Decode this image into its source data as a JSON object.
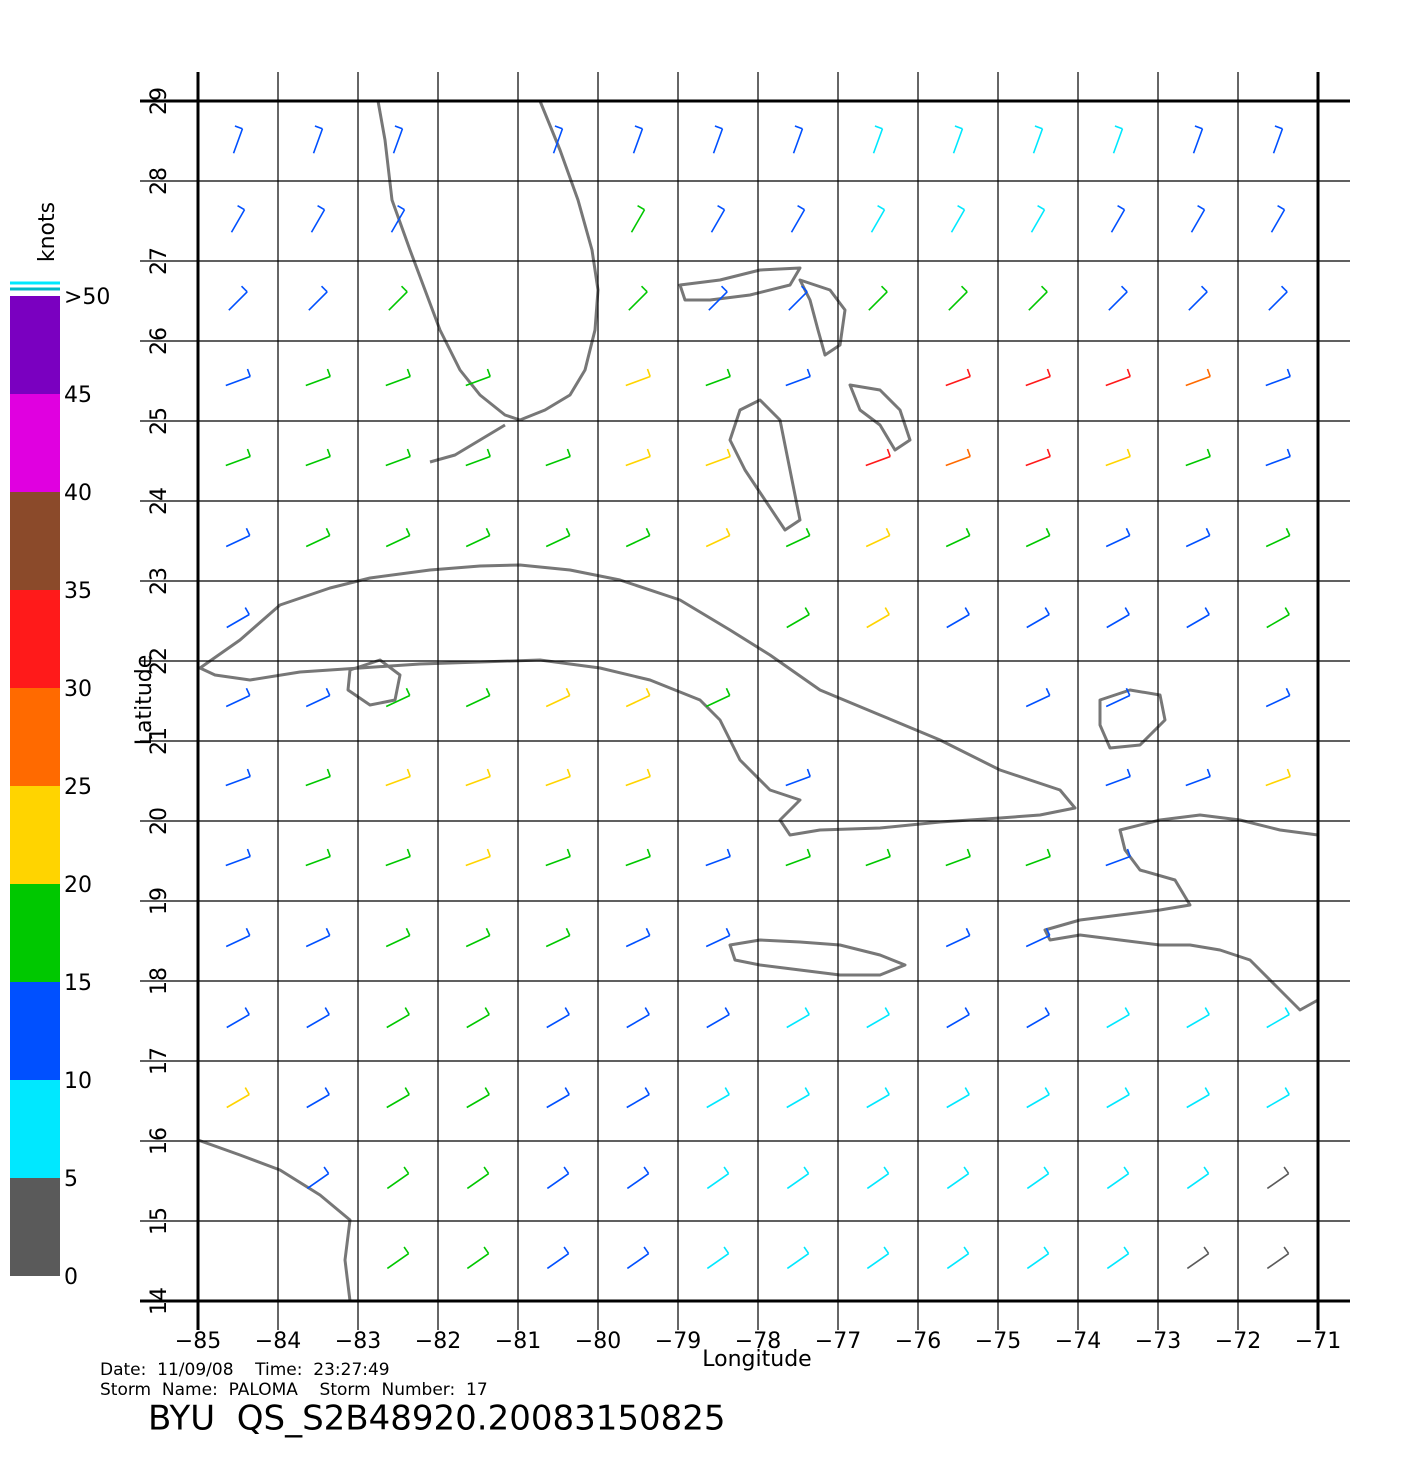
{
  "map": {
    "xlabel": "Longitude",
    "ylabel": "Latitude",
    "xlim": [
      -85,
      -71
    ],
    "ylim": [
      14,
      29
    ],
    "grid": true,
    "xticks": [
      {
        "value": -85,
        "label": "−85"
      },
      {
        "value": -84,
        "label": "−84"
      },
      {
        "value": -83,
        "label": "−83"
      },
      {
        "value": -82,
        "label": "−82"
      },
      {
        "value": -81,
        "label": "−81"
      },
      {
        "value": -80,
        "label": "−80"
      },
      {
        "value": -79,
        "label": "−79"
      },
      {
        "value": -78,
        "label": "−78"
      },
      {
        "value": -77,
        "label": "−77"
      },
      {
        "value": -76,
        "label": "−76"
      },
      {
        "value": -75,
        "label": "−75"
      },
      {
        "value": -74,
        "label": "−74"
      },
      {
        "value": -73,
        "label": "−73"
      },
      {
        "value": -72,
        "label": "−72"
      },
      {
        "value": -71,
        "label": "−71"
      }
    ],
    "yticks": [
      14,
      15,
      16,
      17,
      18,
      19,
      20,
      21,
      22,
      23,
      24,
      25,
      26,
      27,
      28,
      29
    ],
    "wind": {
      "lon": [
        -84.5,
        -83.5,
        -82.5,
        -81.5,
        -80.5,
        -79.5,
        -78.5,
        -77.5,
        -76.5,
        -75.5,
        -74.5,
        -73.5,
        -72.5,
        -71.5
      ],
      "lat": [
        28.5,
        27.5,
        26.5,
        25.5,
        24.5,
        23.5,
        22.5,
        21.5,
        20.5,
        19.5,
        18.5,
        17.5,
        16.5,
        15.5,
        14.5
      ],
      "direction": [
        20,
        30,
        45,
        70,
        70,
        65,
        60,
        65,
        70,
        70,
        65,
        60,
        60,
        55,
        55
      ],
      "speed": [
        [
          12,
          12,
          13,
          null,
          10,
          12,
          13,
          12,
          5,
          5,
          7,
          8,
          10,
          11
        ],
        [
          12,
          13,
          14,
          null,
          null,
          16,
          13,
          12,
          8,
          6,
          8,
          10,
          12,
          12
        ],
        [
          13,
          14,
          16,
          null,
          null,
          18,
          14,
          13,
          16,
          16,
          15,
          14,
          13,
          13
        ],
        [
          14,
          16,
          17,
          17,
          null,
          20,
          18,
          14,
          null,
          30,
          32,
          30,
          28,
          14
        ],
        [
          15,
          17,
          18,
          18,
          18,
          22,
          24,
          null,
          30,
          28,
          30,
          22,
          15,
          14
        ],
        [
          14,
          16,
          18,
          18,
          18,
          18,
          20,
          16,
          22,
          16,
          15,
          13,
          14,
          16
        ],
        [
          14,
          null,
          null,
          null,
          null,
          null,
          null,
          17,
          22,
          14,
          13,
          12,
          13,
          18
        ],
        [
          14,
          14,
          16,
          18,
          20,
          22,
          18,
          null,
          null,
          null,
          12,
          12,
          null,
          14
        ],
        [
          13,
          16,
          20,
          22,
          22,
          20,
          null,
          12,
          null,
          null,
          null,
          12,
          13,
          22
        ],
        [
          12,
          16,
          18,
          20,
          18,
          16,
          14,
          15,
          18,
          18,
          16,
          14,
          null,
          null
        ],
        [
          12,
          14,
          17,
          18,
          16,
          14,
          12,
          null,
          null,
          14,
          11,
          null,
          null,
          null
        ],
        [
          10,
          12,
          15,
          16,
          14,
          12,
          10,
          8,
          9,
          10,
          10,
          8,
          8,
          7
        ],
        [
          20,
          13,
          15,
          16,
          14,
          12,
          9,
          6,
          7,
          9,
          8,
          7,
          6,
          7
        ],
        [
          null,
          14,
          15,
          15,
          13,
          11,
          9,
          7,
          8,
          7,
          7,
          6,
          5,
          4
        ],
        [
          null,
          null,
          16,
          17,
          14,
          11,
          9,
          8,
          6,
          7,
          6,
          5,
          4,
          3
        ]
      ]
    }
  },
  "colorbar": {
    "label": "knots",
    "lim": [
      0,
      50
    ],
    "ticks": [
      0,
      5,
      10,
      15,
      20,
      25,
      30,
      35,
      40,
      45,
      {
        "value": 50,
        "label": ">50"
      }
    ],
    "colors": [
      "#5a5a5a",
      "#00e8ff",
      "#0050ff",
      "#00c800",
      "#ffd400",
      "#ff6a00",
      "#ff1a1a",
      "#8b4a2a",
      "#e000e0",
      "#7a00c0"
    ]
  },
  "footer": {
    "line1": "Date:  11/09/08    Time:  23:27:49",
    "line2": "Storm  Name:  PALOMA    Storm  Number:  17",
    "title": "BYU  QS_S2B48920.20083150825"
  }
}
